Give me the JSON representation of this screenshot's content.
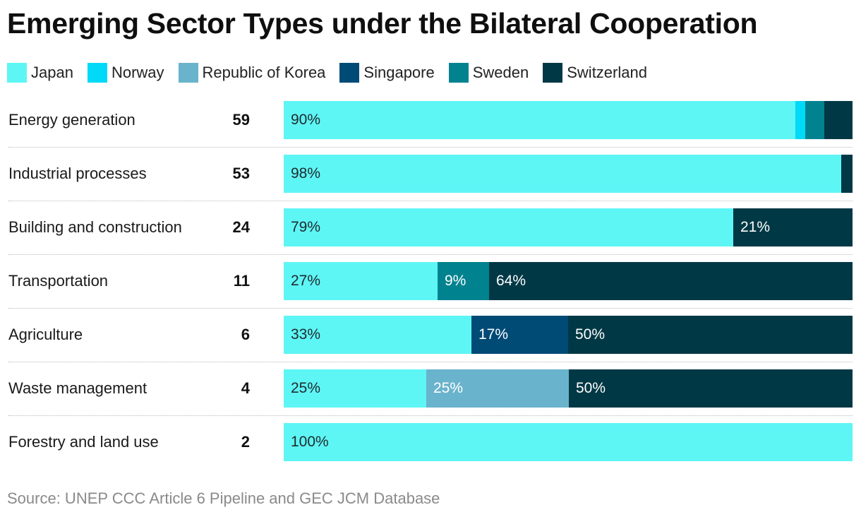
{
  "chart_data": {
    "type": "bar",
    "orientation": "horizontal",
    "stacked": true,
    "normalized": true,
    "title": "Emerging Sector Types under the Bilateral Cooperation",
    "source": "Source: UNEP CCC Article 6 Pipeline and GEC JCM Database",
    "legend_position": "top-left",
    "series_names": [
      "Japan",
      "Norway",
      "Republic of Korea",
      "Singapore",
      "Sweden",
      "Switzerland"
    ],
    "colors": {
      "Japan": "#5ef5f5",
      "Norway": "#00d9f7",
      "Republic of Korea": "#6ab3cc",
      "Singapore": "#004a76",
      "Sweden": "#00838f",
      "Switzerland": "#013845"
    },
    "categories": [
      "Energy generation",
      "Industrial processes",
      "Building and construction",
      "Transportation",
      "Agriculture",
      "Waste management",
      "Forestry and land use"
    ],
    "counts": [
      "59",
      "53",
      "24",
      "11",
      "6",
      "4",
      "2"
    ],
    "rows": [
      {
        "category": "Energy generation",
        "count": "59",
        "segments": [
          {
            "series": "Japan",
            "value": 90,
            "label": "90%"
          },
          {
            "series": "Norway",
            "value": 1.7,
            "label": ""
          },
          {
            "series": "Sweden",
            "value": 3.3,
            "label": ""
          },
          {
            "series": "Switzerland",
            "value": 5,
            "label": ""
          }
        ]
      },
      {
        "category": "Industrial processes",
        "count": "53",
        "segments": [
          {
            "series": "Japan",
            "value": 98,
            "label": "98%"
          },
          {
            "series": "Switzerland",
            "value": 2,
            "label": ""
          }
        ]
      },
      {
        "category": "Building and construction",
        "count": "24",
        "segments": [
          {
            "series": "Japan",
            "value": 79,
            "label": "79%"
          },
          {
            "series": "Switzerland",
            "value": 21,
            "label": "21%"
          }
        ]
      },
      {
        "category": "Transportation",
        "count": "11",
        "segments": [
          {
            "series": "Japan",
            "value": 27,
            "label": "27%"
          },
          {
            "series": "Sweden",
            "value": 9,
            "label": "9%"
          },
          {
            "series": "Switzerland",
            "value": 64,
            "label": "64%"
          }
        ]
      },
      {
        "category": "Agriculture",
        "count": "6",
        "segments": [
          {
            "series": "Japan",
            "value": 33,
            "label": "33%"
          },
          {
            "series": "Singapore",
            "value": 17,
            "label": "17%"
          },
          {
            "series": "Switzerland",
            "value": 50,
            "label": "50%"
          }
        ]
      },
      {
        "category": "Waste management",
        "count": "4",
        "segments": [
          {
            "series": "Japan",
            "value": 25,
            "label": "25%"
          },
          {
            "series": "Republic of Korea",
            "value": 25,
            "label": "25%"
          },
          {
            "series": "Switzerland",
            "value": 50,
            "label": "50%"
          }
        ]
      },
      {
        "category": "Forestry and land use",
        "count": "2",
        "segments": [
          {
            "series": "Japan",
            "value": 100,
            "label": "100%"
          }
        ]
      }
    ],
    "xlim": [
      0,
      100
    ],
    "grid": false
  }
}
